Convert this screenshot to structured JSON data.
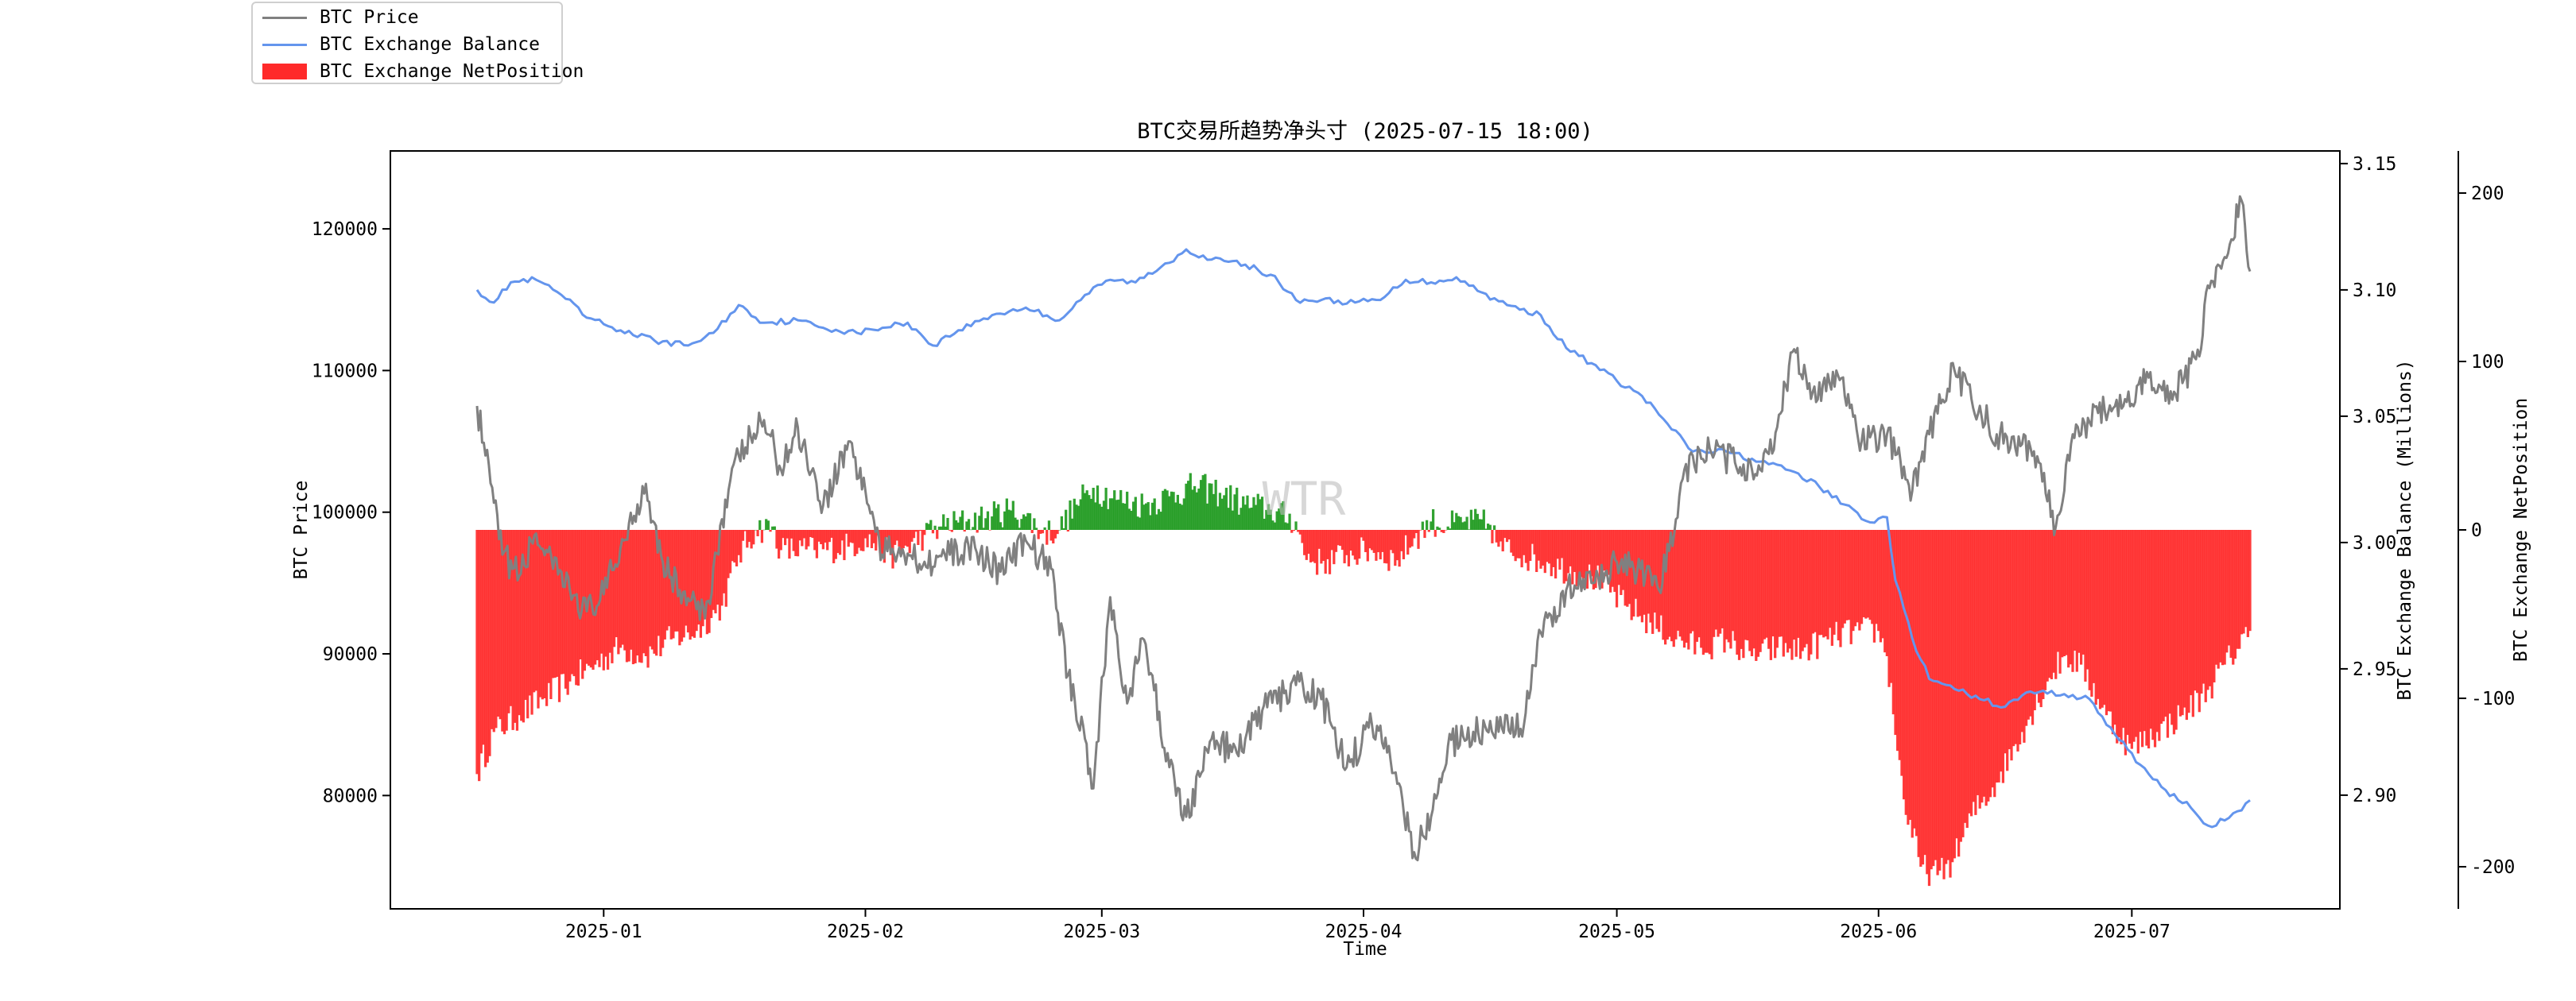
{
  "legend": {
    "items": [
      {
        "label": "BTC Price",
        "color": "#808080",
        "kind": "line"
      },
      {
        "label": "BTC Exchange Balance",
        "color": "#6495ed",
        "kind": "line"
      },
      {
        "label": "BTC Exchange NetPosition",
        "color": "#ff2a2a",
        "kind": "patch"
      }
    ]
  },
  "watermark": "WTR",
  "chart_data": {
    "type": "line",
    "title": "BTC交易所趋势净头寸 (2025-07-15 18:00)",
    "xlabel": "Time",
    "x_ticks": [
      "2025-01",
      "2025-02",
      "2025-03",
      "2025-04",
      "2025-05",
      "2025-06",
      "2025-07"
    ],
    "x_range": [
      "2024-12-17",
      "2025-07-15"
    ],
    "axes": {
      "price": {
        "label": "BTC Price",
        "ylim": [
          72000,
          125500
        ],
        "ticks": [
          80000,
          90000,
          100000,
          110000,
          120000
        ],
        "color": "#808080"
      },
      "balance": {
        "label": "BTC Exchange Balance (Millions)",
        "ylim": [
          2.855,
          3.155
        ],
        "ticks": [
          "2.90",
          "2.95",
          "3.00",
          "3.05",
          "3.10",
          "3.15"
        ],
        "color": "#6495ed"
      },
      "netposition": {
        "label": "BTC Exchange NetPosition",
        "ylim": [
          -225,
          225
        ],
        "ticks": [
          -200,
          -100,
          0,
          100,
          200
        ],
        "colors": {
          "positive": "#1f9a1f",
          "negative": "#ff2a2a"
        }
      }
    },
    "series": [
      {
        "name": "BTC Price",
        "axis": "price",
        "points": [
          [
            "2024-12-17",
            107500
          ],
          [
            "2024-12-18",
            104000
          ],
          [
            "2024-12-20",
            97000
          ],
          [
            "2024-12-22",
            95500
          ],
          [
            "2024-12-24",
            98500
          ],
          [
            "2024-12-26",
            96000
          ],
          [
            "2024-12-28",
            94500
          ],
          [
            "2024-12-30",
            93000
          ],
          [
            "2025-01-01",
            94200
          ],
          [
            "2025-01-03",
            97500
          ],
          [
            "2025-01-06",
            102000
          ],
          [
            "2025-01-08",
            96500
          ],
          [
            "2025-01-10",
            94500
          ],
          [
            "2025-01-13",
            92500
          ],
          [
            "2025-01-15",
            99500
          ],
          [
            "2025-01-17",
            104000
          ],
          [
            "2025-01-20",
            106500
          ],
          [
            "2025-01-22",
            103000
          ],
          [
            "2025-01-24",
            106000
          ],
          [
            "2025-01-27",
            100500
          ],
          [
            "2025-01-30",
            105000
          ],
          [
            "2025-02-01",
            101500
          ],
          [
            "2025-02-03",
            97000
          ],
          [
            "2025-02-05",
            97500
          ],
          [
            "2025-02-08",
            96500
          ],
          [
            "2025-02-11",
            97000
          ],
          [
            "2025-02-14",
            97500
          ],
          [
            "2025-02-17",
            95800
          ],
          [
            "2025-02-20",
            98000
          ],
          [
            "2025-02-23",
            96000
          ],
          [
            "2025-02-25",
            88500
          ],
          [
            "2025-02-27",
            84000
          ],
          [
            "2025-02-28",
            80500
          ],
          [
            "2025-03-02",
            94000
          ],
          [
            "2025-03-04",
            86500
          ],
          [
            "2025-03-06",
            91000
          ],
          [
            "2025-03-09",
            82000
          ],
          [
            "2025-03-11",
            78500
          ],
          [
            "2025-03-14",
            84000
          ],
          [
            "2025-03-17",
            83000
          ],
          [
            "2025-03-20",
            86000
          ],
          [
            "2025-03-24",
            87800
          ],
          [
            "2025-03-27",
            86800
          ],
          [
            "2025-03-30",
            82000
          ],
          [
            "2025-04-02",
            85000
          ],
          [
            "2025-04-04",
            83500
          ],
          [
            "2025-04-07",
            76000
          ],
          [
            "2025-04-09",
            78500
          ],
          [
            "2025-04-11",
            83500
          ],
          [
            "2025-04-14",
            84500
          ],
          [
            "2025-04-17",
            84500
          ],
          [
            "2025-04-20",
            85000
          ],
          [
            "2025-04-22",
            91500
          ],
          [
            "2025-04-25",
            94500
          ],
          [
            "2025-04-28",
            95000
          ],
          [
            "2025-05-01",
            96500
          ],
          [
            "2025-05-03",
            96000
          ],
          [
            "2025-05-06",
            94500
          ],
          [
            "2025-05-08",
            99500
          ],
          [
            "2025-05-09",
            103000
          ],
          [
            "2025-05-12",
            104500
          ],
          [
            "2025-05-15",
            103500
          ],
          [
            "2025-05-18",
            103000
          ],
          [
            "2025-05-20",
            106000
          ],
          [
            "2025-05-22",
            111500
          ],
          [
            "2025-05-24",
            108000
          ],
          [
            "2025-05-27",
            110000
          ],
          [
            "2025-05-30",
            105000
          ],
          [
            "2025-06-02",
            105500
          ],
          [
            "2025-06-05",
            101500
          ],
          [
            "2025-06-07",
            105500
          ],
          [
            "2025-06-10",
            110000
          ],
          [
            "2025-06-12",
            108000
          ],
          [
            "2025-06-15",
            105500
          ],
          [
            "2025-06-18",
            104800
          ],
          [
            "2025-06-20",
            103500
          ],
          [
            "2025-06-22",
            99000
          ],
          [
            "2025-06-24",
            105500
          ],
          [
            "2025-06-27",
            107000
          ],
          [
            "2025-06-30",
            107500
          ],
          [
            "2025-07-03",
            109500
          ],
          [
            "2025-07-06",
            108500
          ],
          [
            "2025-07-09",
            111000
          ],
          [
            "2025-07-10",
            116000
          ],
          [
            "2025-07-12",
            118000
          ],
          [
            "2025-07-14",
            122000
          ],
          [
            "2025-07-15",
            117000
          ]
        ]
      },
      {
        "name": "BTC Exchange Balance",
        "axis": "balance",
        "points": [
          [
            "2024-12-17",
            3.1
          ],
          [
            "2024-12-19",
            3.095
          ],
          [
            "2024-12-21",
            3.103
          ],
          [
            "2024-12-24",
            3.104
          ],
          [
            "2024-12-27",
            3.098
          ],
          [
            "2024-12-30",
            3.089
          ],
          [
            "2025-01-03",
            3.084
          ],
          [
            "2025-01-07",
            3.08
          ],
          [
            "2025-01-11",
            3.078
          ],
          [
            "2025-01-14",
            3.083
          ],
          [
            "2025-01-17",
            3.094
          ],
          [
            "2025-01-20",
            3.087
          ],
          [
            "2025-01-24",
            3.088
          ],
          [
            "2025-01-27",
            3.085
          ],
          [
            "2025-01-31",
            3.083
          ],
          [
            "2025-02-03",
            3.085
          ],
          [
            "2025-02-06",
            3.087
          ],
          [
            "2025-02-09",
            3.078
          ],
          [
            "2025-02-12",
            3.084
          ],
          [
            "2025-02-16",
            3.09
          ],
          [
            "2025-02-20",
            3.093
          ],
          [
            "2025-02-24",
            3.088
          ],
          [
            "2025-02-27",
            3.098
          ],
          [
            "2025-03-02",
            3.104
          ],
          [
            "2025-03-05",
            3.103
          ],
          [
            "2025-03-08",
            3.109
          ],
          [
            "2025-03-11",
            3.116
          ],
          [
            "2025-03-14",
            3.112
          ],
          [
            "2025-03-18",
            3.11
          ],
          [
            "2025-03-21",
            3.106
          ],
          [
            "2025-03-24",
            3.096
          ],
          [
            "2025-03-27",
            3.096
          ],
          [
            "2025-03-31",
            3.095
          ],
          [
            "2025-04-03",
            3.096
          ],
          [
            "2025-04-06",
            3.104
          ],
          [
            "2025-04-09",
            3.103
          ],
          [
            "2025-04-12",
            3.105
          ],
          [
            "2025-04-15",
            3.099
          ],
          [
            "2025-04-18",
            3.094
          ],
          [
            "2025-04-22",
            3.09
          ],
          [
            "2025-04-25",
            3.077
          ],
          [
            "2025-04-28",
            3.071
          ],
          [
            "2025-05-01",
            3.064
          ],
          [
            "2025-05-04",
            3.058
          ],
          [
            "2025-05-07",
            3.047
          ],
          [
            "2025-05-10",
            3.036
          ],
          [
            "2025-05-14",
            3.036
          ],
          [
            "2025-05-18",
            3.032
          ],
          [
            "2025-05-22",
            3.028
          ],
          [
            "2025-05-25",
            3.022
          ],
          [
            "2025-05-28",
            3.015
          ],
          [
            "2025-05-31",
            3.008
          ],
          [
            "2025-06-02",
            3.01
          ],
          [
            "2025-06-03",
            2.985
          ],
          [
            "2025-06-05",
            2.962
          ],
          [
            "2025-06-07",
            2.946
          ],
          [
            "2025-06-10",
            2.942
          ],
          [
            "2025-06-13",
            2.938
          ],
          [
            "2025-06-16",
            2.935
          ],
          [
            "2025-06-19",
            2.941
          ],
          [
            "2025-06-23",
            2.94
          ],
          [
            "2025-06-26",
            2.938
          ],
          [
            "2025-06-29",
            2.924
          ],
          [
            "2025-07-02",
            2.912
          ],
          [
            "2025-07-05",
            2.902
          ],
          [
            "2025-07-08",
            2.895
          ],
          [
            "2025-07-10",
            2.888
          ],
          [
            "2025-07-12",
            2.89
          ],
          [
            "2025-07-14",
            2.894
          ],
          [
            "2025-07-15",
            2.898
          ]
        ]
      },
      {
        "name": "BTC Exchange NetPosition",
        "axis": "netposition",
        "type": "bar",
        "points": [
          [
            "2024-12-17",
            -145
          ],
          [
            "2024-12-19",
            -120
          ],
          [
            "2024-12-22",
            -110
          ],
          [
            "2024-12-25",
            -100
          ],
          [
            "2024-12-28",
            -90
          ],
          [
            "2024-12-31",
            -80
          ],
          [
            "2025-01-03",
            -70
          ],
          [
            "2025-01-06",
            -75
          ],
          [
            "2025-01-09",
            -65
          ],
          [
            "2025-01-12",
            -60
          ],
          [
            "2025-01-15",
            -45
          ],
          [
            "2025-01-17",
            -15
          ],
          [
            "2025-01-19",
            0
          ],
          [
            "2025-01-21",
            2
          ],
          [
            "2025-01-22",
            -12
          ],
          [
            "2025-01-26",
            -12
          ],
          [
            "2025-01-30",
            -10
          ],
          [
            "2025-02-01",
            -5
          ],
          [
            "2025-02-04",
            -15
          ],
          [
            "2025-02-06",
            -10
          ],
          [
            "2025-02-08",
            -3
          ],
          [
            "2025-02-10",
            2
          ],
          [
            "2025-02-13",
            5
          ],
          [
            "2025-02-16",
            8
          ],
          [
            "2025-02-18",
            12
          ],
          [
            "2025-02-20",
            8
          ],
          [
            "2025-02-22",
            -2
          ],
          [
            "2025-02-24",
            0
          ],
          [
            "2025-02-26",
            15
          ],
          [
            "2025-02-28",
            25
          ],
          [
            "2025-03-03",
            18
          ],
          [
            "2025-03-06",
            15
          ],
          [
            "2025-03-09",
            20
          ],
          [
            "2025-03-12",
            26
          ],
          [
            "2025-03-15",
            22
          ],
          [
            "2025-03-18",
            15
          ],
          [
            "2025-03-21",
            12
          ],
          [
            "2025-03-24",
            5
          ],
          [
            "2025-03-25",
            -15
          ],
          [
            "2025-03-27",
            -20
          ],
          [
            "2025-03-30",
            -15
          ],
          [
            "2025-04-02",
            -12
          ],
          [
            "2025-04-05",
            -18
          ],
          [
            "2025-04-07",
            -5
          ],
          [
            "2025-04-09",
            5
          ],
          [
            "2025-04-11",
            2
          ],
          [
            "2025-04-13",
            5
          ],
          [
            "2025-04-16",
            3
          ],
          [
            "2025-04-17",
            -10
          ],
          [
            "2025-04-20",
            -15
          ],
          [
            "2025-04-23",
            -20
          ],
          [
            "2025-04-26",
            -25
          ],
          [
            "2025-04-29",
            -30
          ],
          [
            "2025-05-02",
            -45
          ],
          [
            "2025-05-05",
            -55
          ],
          [
            "2025-05-08",
            -65
          ],
          [
            "2025-05-11",
            -70
          ],
          [
            "2025-05-14",
            -65
          ],
          [
            "2025-05-17",
            -75
          ],
          [
            "2025-05-20",
            -70
          ],
          [
            "2025-05-23",
            -72
          ],
          [
            "2025-05-26",
            -65
          ],
          [
            "2025-05-29",
            -60
          ],
          [
            "2025-06-01",
            -60
          ],
          [
            "2025-06-02",
            -75
          ],
          [
            "2025-06-04",
            -160
          ],
          [
            "2025-06-06",
            -200
          ],
          [
            "2025-06-08",
            -205
          ],
          [
            "2025-06-10",
            -195
          ],
          [
            "2025-06-12",
            -170
          ],
          [
            "2025-06-15",
            -150
          ],
          [
            "2025-06-18",
            -120
          ],
          [
            "2025-06-21",
            -90
          ],
          [
            "2025-06-23",
            -75
          ],
          [
            "2025-06-25",
            -80
          ],
          [
            "2025-06-28",
            -110
          ],
          [
            "2025-07-01",
            -130
          ],
          [
            "2025-07-04",
            -120
          ],
          [
            "2025-07-07",
            -110
          ],
          [
            "2025-07-10",
            -95
          ],
          [
            "2025-07-12",
            -80
          ],
          [
            "2025-07-15",
            -60
          ]
        ]
      }
    ]
  }
}
